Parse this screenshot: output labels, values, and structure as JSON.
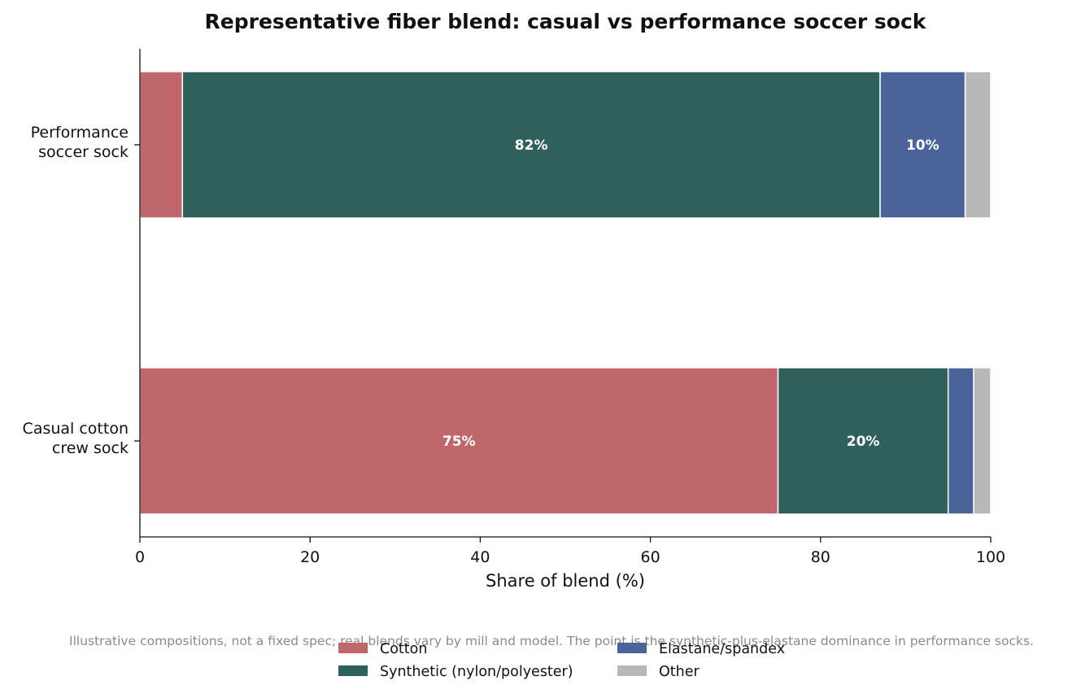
{
  "chart_data": {
    "type": "bar",
    "orientation": "horizontal",
    "stacked": true,
    "title": "Representative fiber blend: casual vs performance soccer sock",
    "xlabel": "Share of blend (%)",
    "ylabel": "",
    "xlim": [
      0,
      100
    ],
    "xticks": [
      "0",
      "20",
      "40",
      "60",
      "80",
      "100"
    ],
    "categories": [
      [
        "Casual cotton",
        "crew sock"
      ],
      [
        "Performance",
        "soccer sock"
      ]
    ],
    "series": [
      {
        "name": "Cotton",
        "color": "#c0676b",
        "values": [
          75,
          5
        ],
        "labels": [
          "75%",
          ""
        ]
      },
      {
        "name": "Synthetic (nylon/polyester)",
        "color": "#2e605c",
        "values": [
          20,
          82
        ],
        "labels": [
          "20%",
          "82%"
        ]
      },
      {
        "name": "Elastane/spandex",
        "color": "#4a6399",
        "values": [
          3,
          10
        ],
        "labels": [
          "",
          "10%"
        ]
      },
      {
        "name": "Other",
        "color": "#b8b8b8",
        "values": [
          2,
          3
        ],
        "labels": [
          "",
          ""
        ]
      }
    ],
    "grid": false,
    "legend_position": "bottom-center",
    "note": "Illustrative compositions, not a fixed spec; real blends vary by mill and model. The point is the synthetic-plus-elastane dominance in performance socks."
  }
}
